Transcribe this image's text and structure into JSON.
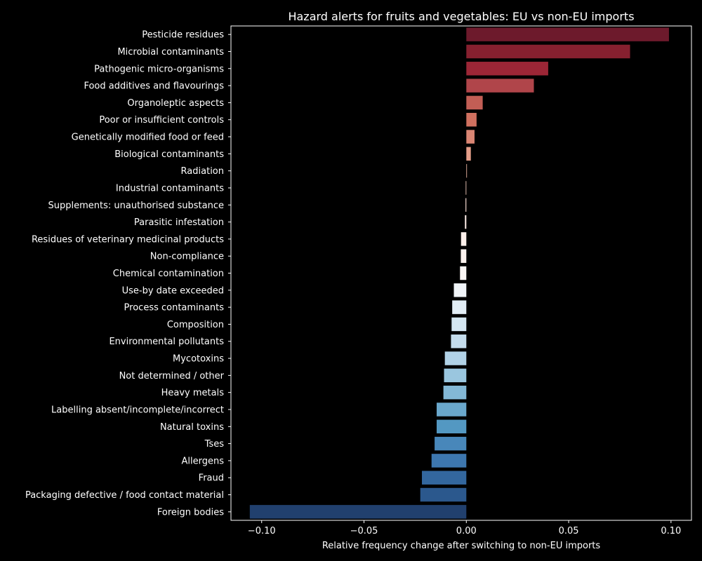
{
  "chart_data": {
    "type": "bar",
    "orientation": "horizontal",
    "title": "Hazard alerts for fruits and vegetables: EU vs non-EU imports",
    "xlabel": "Relative frequency change after switching to non-EU imports",
    "ylabel": "",
    "xlim": [
      -0.115,
      0.11
    ],
    "xticks": [
      -0.1,
      -0.05,
      0.0,
      0.05,
      0.1
    ],
    "xtick_labels": [
      "−0.10",
      "−0.05",
      "0.00",
      "0.05",
      "0.10"
    ],
    "grid": false,
    "legend": "none",
    "colormap": "RdBu",
    "categories": [
      "Pesticide residues",
      "Microbial contaminants",
      "Pathogenic micro-organisms",
      "Food additives and flavourings",
      "Organoleptic aspects",
      "Poor or insufficient controls",
      "Genetically modified food or feed",
      "Biological contaminants",
      "Radiation",
      "Industrial contaminants",
      "Supplements: unauthorised substance",
      "Parasitic infestation",
      "Residues of veterinary medicinal products",
      "Non-compliance",
      "Chemical contamination",
      "Use-by date exceeded",
      "Process contaminants",
      "Composition",
      "Environmental pollutants",
      "Mycotoxins",
      "Not determined / other",
      "Heavy metals",
      "Labelling absent/incomplete/incorrect",
      "Natural toxins",
      "Tses",
      "Allergens",
      "Fraud",
      "Packaging defective / food contact material",
      "Foreign bodies"
    ],
    "values": [
      0.099,
      0.08,
      0.04,
      0.033,
      0.008,
      0.005,
      0.004,
      0.0022,
      0.0003,
      -0.0003,
      -0.0004,
      -0.0007,
      -0.0026,
      -0.0027,
      -0.0031,
      -0.0061,
      -0.0069,
      -0.0072,
      -0.0075,
      -0.0105,
      -0.0109,
      -0.0112,
      -0.0145,
      -0.0145,
      -0.0155,
      -0.017,
      -0.0217,
      -0.0225,
      -0.1058
    ],
    "colors": [
      "#6d1a2c",
      "#86202f",
      "#9c2636",
      "#b0454a",
      "#c25e55",
      "#d0705f",
      "#da8573",
      "#e49e89",
      "#ecb6a3",
      "#f4cdbd",
      "#f8ddd3",
      "#fbeae4",
      "#fcefea",
      "#fbf2ee",
      "#faf6f4",
      "#f0f4f8",
      "#e2edf5",
      "#d4e6f1",
      "#c4dcec",
      "#b1d2e7",
      "#9ac6df",
      "#83b8d6",
      "#6aa8cc",
      "#5398c2",
      "#4887ba",
      "#3d77af",
      "#33679e",
      "#2b588d",
      "#21406e"
    ],
    "bar_colors_semantic": "red for positive change, blue for negative change"
  }
}
